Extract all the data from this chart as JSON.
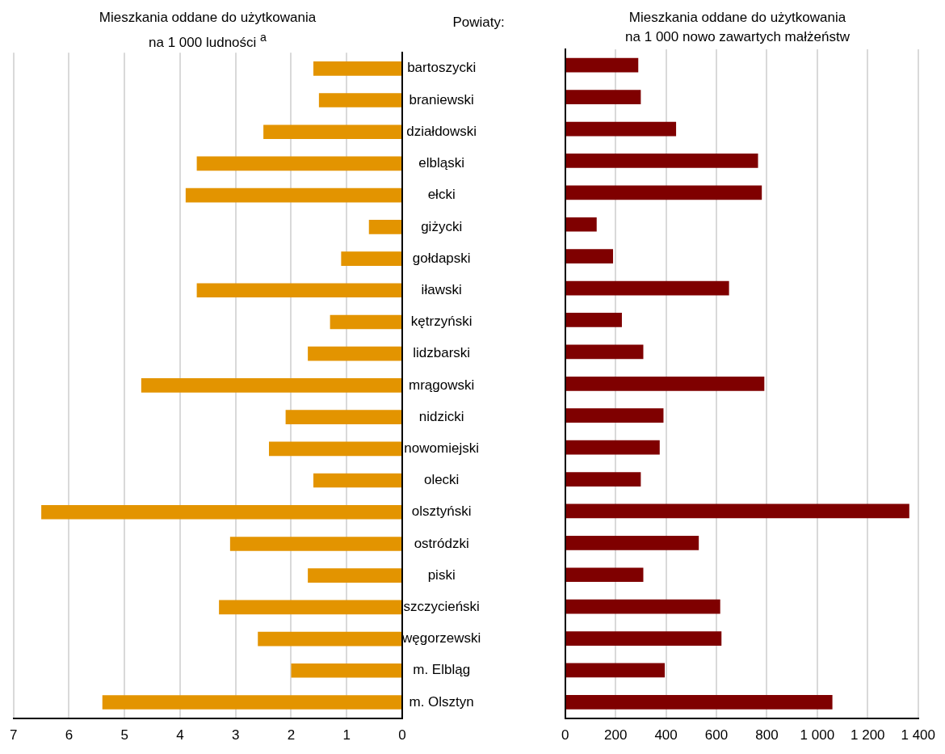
{
  "chart_data": [
    {
      "type": "bar",
      "orientation": "horizontal",
      "title": "Mieszkania oddane do użytkowania\nna 1 000 ludności $^{a}$",
      "ylabel": "Powiaty:",
      "categories": [
        "bartoszycki",
        "braniewski",
        "działdowski",
        "elbląski",
        "ełcki",
        "giżycki",
        "gołdapski",
        "iławski",
        "kętrzyński",
        "lidzbarski",
        "mrągowski",
        "nidzicki",
        "nowomiejski",
        "olecki",
        "olsztyński",
        "ostródzki",
        "piski",
        "szczycieński",
        "węgorzewski",
        "m. Elbląg",
        "m. Olsztyn"
      ],
      "values": [
        1.6,
        1.5,
        2.5,
        3.7,
        3.9,
        0.6,
        1.1,
        3.7,
        1.3,
        1.7,
        4.7,
        2.1,
        2.4,
        1.6,
        6.5,
        3.1,
        1.7,
        3.3,
        2.6,
        2.0,
        5.4
      ],
      "color": "#e39400",
      "xlim": [
        7,
        0
      ],
      "xticks": [
        7,
        6,
        5,
        4,
        3,
        2,
        1,
        0
      ],
      "grid": "x"
    },
    {
      "type": "bar",
      "orientation": "horizontal",
      "title": "Mieszkania oddane do użytkowania\nna 1 000 nowo zawartych małżeństw",
      "categories": [
        null,
        null,
        null,
        null,
        null,
        null,
        null,
        null,
        null,
        null,
        null,
        null,
        null,
        null,
        null,
        null,
        null,
        null,
        null,
        null,
        null
      ],
      "values": [
        290,
        300,
        440,
        765,
        780,
        125,
        190,
        650,
        225,
        310,
        790,
        390,
        375,
        300,
        1365,
        530,
        310,
        615,
        620,
        395,
        1060
      ],
      "color": "#7f0000",
      "xlim": [
        0,
        1400
      ],
      "xticks": [
        0,
        200,
        400,
        600,
        800,
        {
          "value": 1000,
          "label": "1 000"
        },
        {
          "value": 1200,
          "label": "1 200"
        },
        {
          "value": 1400,
          "label": "1 400"
        }
      ],
      "grid": "x",
      "tick_labels": "x"
    }
  ]
}
